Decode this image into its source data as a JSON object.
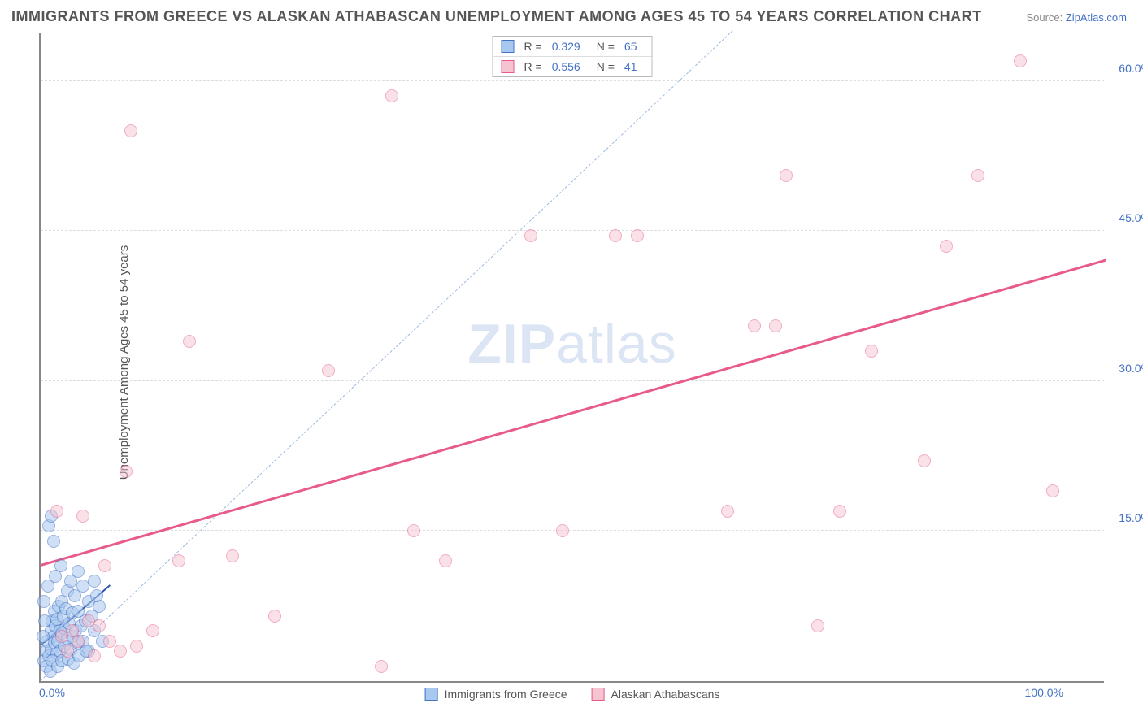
{
  "title": "IMMIGRANTS FROM GREECE VS ALASKAN ATHABASCAN UNEMPLOYMENT AMONG AGES 45 TO 54 YEARS CORRELATION CHART",
  "source_label": "Source: ",
  "source_site": "ZipAtlas.com",
  "ylabel": "Unemployment Among Ages 45 to 54 years",
  "watermark_a": "ZIP",
  "watermark_b": "atlas",
  "chart": {
    "type": "scatter",
    "xlim": [
      0,
      100
    ],
    "ylim": [
      0,
      65
    ],
    "xtick_min_label": "0.0%",
    "xtick_max_label": "100.0%",
    "yticks": [
      15,
      30,
      45,
      60
    ],
    "ytick_labels": [
      "15.0%",
      "30.0%",
      "45.0%",
      "60.0%"
    ],
    "grid_color": "#dddddd",
    "axis_color": "#888888",
    "tick_font_color": "#4472c4",
    "tick_fontsize": 14,
    "background_color": "#ffffff",
    "point_radius": 8,
    "series": [
      {
        "name": "Immigrants from Greece",
        "fill": "#a8c8f0",
        "stroke": "#4472c4",
        "fill_opacity": 0.55,
        "r_value": "0.329",
        "n_value": "65",
        "trend": {
          "x1": 0,
          "y1": 3.5,
          "x2": 6.5,
          "y2": 9.5,
          "color": "#2a56a8",
          "width": 2,
          "dashed": false
        },
        "identity_line": {
          "x1": 0,
          "y1": 0,
          "x2": 65,
          "y2": 65,
          "color": "#9cb8e0",
          "width": 1.5,
          "dashed": true
        },
        "points": [
          [
            0.3,
            2.0
          ],
          [
            0.5,
            3.0
          ],
          [
            0.6,
            4.0
          ],
          [
            0.8,
            2.5
          ],
          [
            1.0,
            5.0
          ],
          [
            1.0,
            3.2
          ],
          [
            1.1,
            6.0
          ],
          [
            1.2,
            4.5
          ],
          [
            1.3,
            7.0
          ],
          [
            1.3,
            3.8
          ],
          [
            1.4,
            5.5
          ],
          [
            1.5,
            2.8
          ],
          [
            1.5,
            6.2
          ],
          [
            1.6,
            4.0
          ],
          [
            1.7,
            7.5
          ],
          [
            1.8,
            5.0
          ],
          [
            1.8,
            3.0
          ],
          [
            2.0,
            8.0
          ],
          [
            2.0,
            4.8
          ],
          [
            2.1,
            6.5
          ],
          [
            2.2,
            3.5
          ],
          [
            2.3,
            5.2
          ],
          [
            2.4,
            7.2
          ],
          [
            2.5,
            4.2
          ],
          [
            2.5,
            9.0
          ],
          [
            2.7,
            5.8
          ],
          [
            2.8,
            3.2
          ],
          [
            3.0,
            6.8
          ],
          [
            3.0,
            4.5
          ],
          [
            3.2,
            8.5
          ],
          [
            3.3,
            5.0
          ],
          [
            3.5,
            3.8
          ],
          [
            3.5,
            7.0
          ],
          [
            3.8,
            5.5
          ],
          [
            4.0,
            9.5
          ],
          [
            4.0,
            4.0
          ],
          [
            4.2,
            6.0
          ],
          [
            4.5,
            3.0
          ],
          [
            4.5,
            8.0
          ],
          [
            5.0,
            5.0
          ],
          [
            5.0,
            10.0
          ],
          [
            5.5,
            7.5
          ],
          [
            0.8,
            15.5
          ],
          [
            1.0,
            16.5
          ],
          [
            1.2,
            14.0
          ],
          [
            0.5,
            1.5
          ],
          [
            0.2,
            4.5
          ],
          [
            0.4,
            6.0
          ],
          [
            0.9,
            1.0
          ],
          [
            1.1,
            2.0
          ],
          [
            1.6,
            1.5
          ],
          [
            2.0,
            2.0
          ],
          [
            2.6,
            2.2
          ],
          [
            3.1,
            1.8
          ],
          [
            3.6,
            2.5
          ],
          [
            4.3,
            3.0
          ],
          [
            0.3,
            8.0
          ],
          [
            0.7,
            9.5
          ],
          [
            1.4,
            10.5
          ],
          [
            1.9,
            11.5
          ],
          [
            2.8,
            10.0
          ],
          [
            3.5,
            11.0
          ],
          [
            4.8,
            6.5
          ],
          [
            5.3,
            8.5
          ],
          [
            5.8,
            4.0
          ]
        ]
      },
      {
        "name": "Alaskan Athabascans",
        "fill": "#f5c4d0",
        "stroke": "#e85a8a",
        "fill_opacity": 0.5,
        "r_value": "0.556",
        "n_value": "41",
        "trend": {
          "x1": 0,
          "y1": 11.5,
          "x2": 100,
          "y2": 42,
          "color": "#e85a8a",
          "width": 2.5,
          "dashed": false
        },
        "points": [
          [
            1.5,
            17.0
          ],
          [
            3.0,
            5.0
          ],
          [
            3.5,
            4.0
          ],
          [
            4.0,
            16.5
          ],
          [
            5.0,
            2.5
          ],
          [
            5.5,
            5.5
          ],
          [
            6.0,
            11.5
          ],
          [
            7.5,
            3.0
          ],
          [
            8.0,
            21.0
          ],
          [
            8.5,
            55.0
          ],
          [
            13.0,
            12.0
          ],
          [
            14.0,
            34.0
          ],
          [
            18.0,
            12.5
          ],
          [
            22.0,
            6.5
          ],
          [
            27.0,
            31.0
          ],
          [
            32.0,
            1.5
          ],
          [
            33.0,
            58.5
          ],
          [
            35.0,
            15.0
          ],
          [
            38.0,
            12.0
          ],
          [
            46.0,
            44.5
          ],
          [
            49.0,
            15.0
          ],
          [
            54.0,
            44.5
          ],
          [
            56.0,
            44.5
          ],
          [
            64.5,
            17.0
          ],
          [
            67.0,
            35.5
          ],
          [
            69.0,
            35.5
          ],
          [
            70.0,
            50.5
          ],
          [
            73.0,
            5.5
          ],
          [
            75.0,
            17.0
          ],
          [
            78.0,
            33.0
          ],
          [
            83.0,
            22.0
          ],
          [
            85.0,
            43.5
          ],
          [
            88.0,
            50.5
          ],
          [
            92.0,
            62.0
          ],
          [
            95.0,
            19.0
          ],
          [
            2.0,
            4.5
          ],
          [
            2.5,
            3.0
          ],
          [
            4.5,
            6.0
          ],
          [
            6.5,
            4.0
          ],
          [
            9.0,
            3.5
          ],
          [
            10.5,
            5.0
          ]
        ]
      }
    ]
  },
  "statbox": {
    "r_label": "R =",
    "n_label": "N ="
  },
  "legend": {
    "items": [
      "Immigrants from Greece",
      "Alaskan Athabascans"
    ]
  }
}
